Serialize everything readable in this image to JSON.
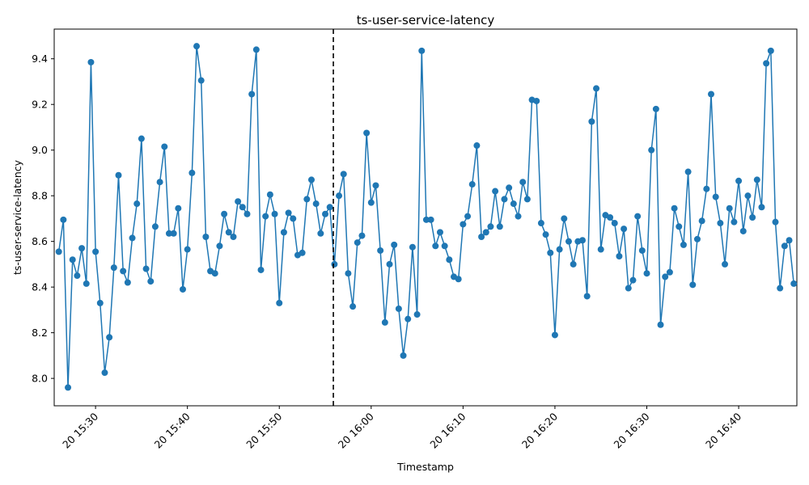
{
  "chart_data": {
    "type": "line",
    "title": "ts-user-service-latency",
    "xlabel": "Timestamp",
    "ylabel": "ts-user-service-latency",
    "x_start": "2000-01-20T15:26",
    "x_step_minutes": 0.5,
    "xlim": [
      "2000-01-20T15:25:30",
      "2000-01-20T16:46:20"
    ],
    "ylim": [
      7.88,
      9.53
    ],
    "x_ticks": [
      {
        "label": "20 15:30",
        "time": "2000-01-20T15:30"
      },
      {
        "label": "20 15:40",
        "time": "2000-01-20T15:40"
      },
      {
        "label": "20 15:50",
        "time": "2000-01-20T15:50"
      },
      {
        "label": "20 16:00",
        "time": "2000-01-20T16:00"
      },
      {
        "label": "20 16:10",
        "time": "2000-01-20T16:10"
      },
      {
        "label": "20 16:20",
        "time": "2000-01-20T16:20"
      },
      {
        "label": "20 16:30",
        "time": "2000-01-20T16:30"
      },
      {
        "label": "20 16:40",
        "time": "2000-01-20T16:40"
      }
    ],
    "y_ticks": [
      {
        "label": "8.0",
        "value": 8.0
      },
      {
        "label": "8.2",
        "value": 8.2
      },
      {
        "label": "8.4",
        "value": 8.4
      },
      {
        "label": "8.6",
        "value": 8.6
      },
      {
        "label": "8.8",
        "value": 8.8
      },
      {
        "label": "9.0",
        "value": 9.0
      },
      {
        "label": "9.2",
        "value": 9.2
      },
      {
        "label": "9.4",
        "value": 9.4
      }
    ],
    "vline_time": "2000-01-20T15:55:53",
    "grid": false,
    "series": [
      {
        "color": "#1f77b4",
        "values": [
          8.555,
          8.695,
          7.96,
          8.52,
          8.45,
          8.57,
          8.415,
          9.385,
          8.555,
          8.33,
          8.025,
          8.18,
          8.485,
          8.89,
          8.47,
          8.42,
          8.615,
          8.765,
          9.05,
          8.48,
          8.425,
          8.665,
          8.86,
          9.015,
          8.635,
          8.635,
          8.745,
          8.39,
          8.565,
          8.9,
          9.455,
          9.305,
          8.62,
          8.47,
          8.46,
          8.58,
          8.72,
          8.64,
          8.62,
          8.775,
          8.75,
          8.72,
          9.245,
          9.44,
          8.475,
          8.71,
          8.805,
          8.72,
          8.33,
          8.64,
          8.725,
          8.7,
          8.54,
          8.55,
          8.785,
          8.87,
          8.765,
          8.635,
          8.72,
          8.75,
          8.5,
          8.8,
          8.895,
          8.46,
          8.315,
          8.595,
          8.625,
          9.075,
          8.77,
          8.845,
          8.56,
          8.245,
          8.5,
          8.585,
          8.305,
          8.1,
          8.26,
          8.575,
          8.28,
          9.435,
          8.695,
          8.695,
          8.58,
          8.64,
          8.58,
          8.52,
          8.445,
          8.435,
          8.675,
          8.71,
          8.85,
          9.02,
          8.62,
          8.64,
          8.665,
          8.82,
          8.665,
          8.785,
          8.835,
          8.765,
          8.71,
          8.86,
          8.785,
          9.22,
          9.215,
          8.68,
          8.63,
          8.55,
          8.19,
          8.565,
          8.7,
          8.6,
          8.5,
          8.6,
          8.605,
          8.36,
          9.125,
          9.27,
          8.565,
          8.715,
          8.705,
          8.68,
          8.535,
          8.655,
          8.395,
          8.43,
          8.71,
          8.56,
          8.46,
          9.0,
          9.18,
          8.235,
          8.445,
          8.465,
          8.745,
          8.665,
          8.585,
          8.905,
          8.41,
          8.61,
          8.69,
          8.83,
          9.245,
          8.795,
          8.68,
          8.5,
          8.745,
          8.685,
          8.865,
          8.645,
          8.8,
          8.705,
          8.87,
          8.75,
          9.38,
          9.435,
          8.685,
          8.395,
          8.58,
          8.605,
          8.415
        ]
      }
    ]
  }
}
